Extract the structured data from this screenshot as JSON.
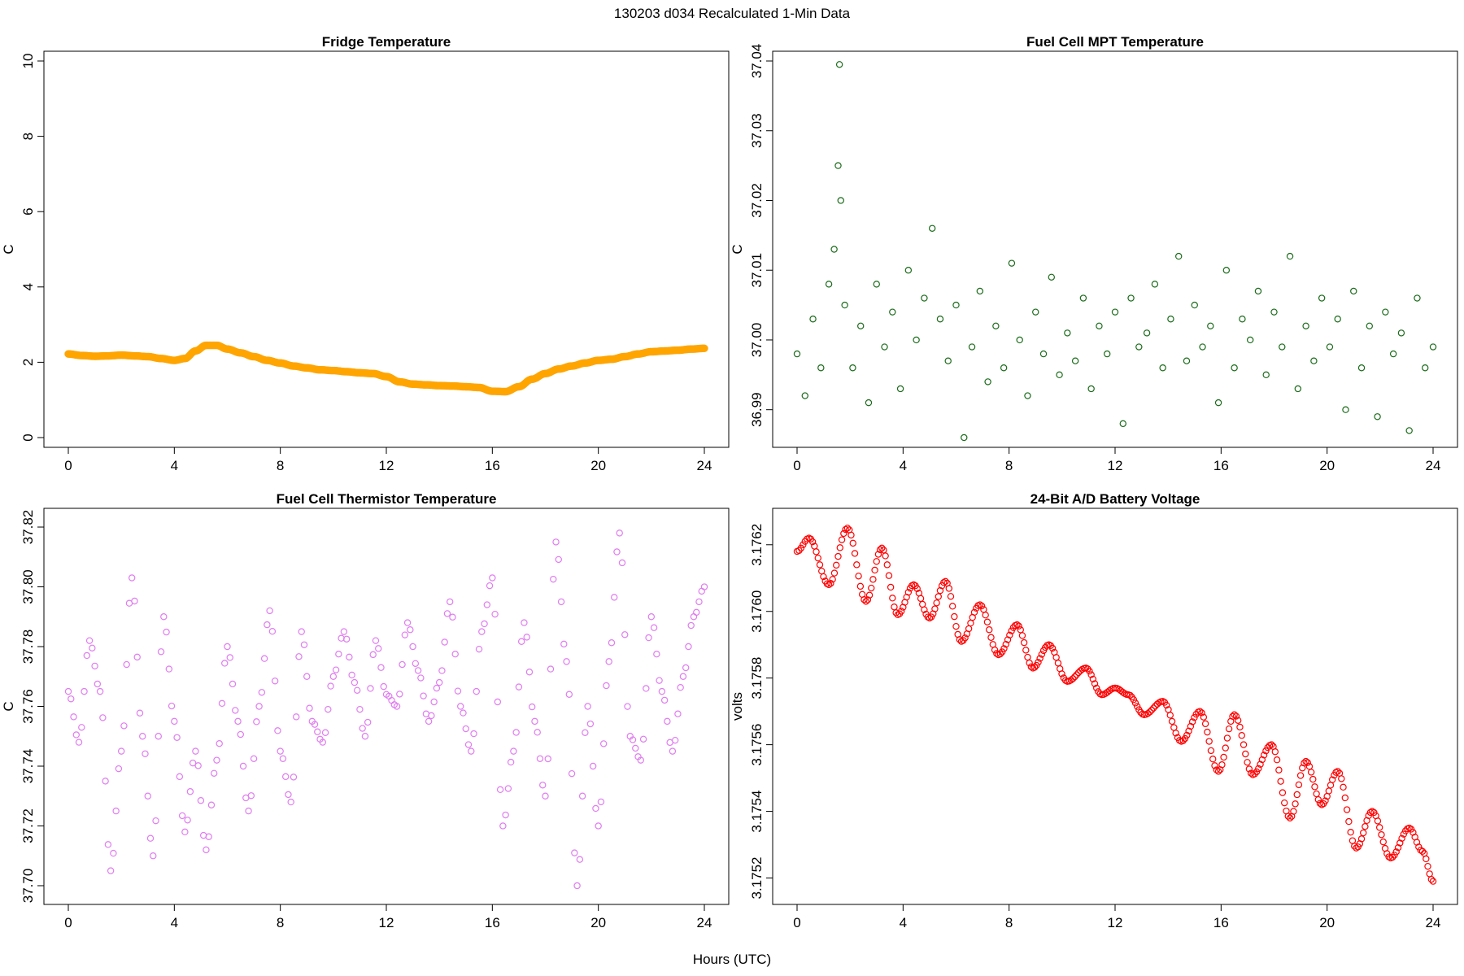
{
  "figure": {
    "title": "130203   d034   Recalculated 1-Min Data",
    "xlabel": "Hours (UTC)"
  },
  "chart_data": [
    {
      "type": "line",
      "title": "Fridge Temperature",
      "xlabel": "",
      "ylabel": "C",
      "xlim": [
        0,
        24
      ],
      "ylim": [
        0,
        10
      ],
      "xticks": [
        0,
        4,
        8,
        12,
        16,
        20,
        24
      ],
      "yticks": [
        0,
        2,
        4,
        6,
        8,
        10
      ],
      "ytick_labels": [
        "0",
        "2",
        "4",
        "6",
        "8",
        "10"
      ],
      "color": "#FFA500",
      "marker": "circle",
      "series": [
        {
          "x": [
            0,
            0.5,
            1,
            1.5,
            2,
            2.5,
            3,
            3.5,
            4,
            4.4,
            4.8,
            5.2,
            5.6,
            6,
            6.5,
            7,
            7.5,
            8,
            8.5,
            9,
            9.5,
            10,
            10.5,
            11,
            11.5,
            12,
            12.5,
            13,
            13.5,
            14,
            14.5,
            15,
            15.5,
            16,
            16.5,
            17,
            17.5,
            18,
            18.5,
            19,
            19.5,
            20,
            20.5,
            21,
            21.5,
            22,
            22.5,
            23,
            23.5,
            24
          ],
          "y": [
            2.22,
            2.18,
            2.16,
            2.17,
            2.19,
            2.17,
            2.15,
            2.1,
            2.05,
            2.1,
            2.3,
            2.45,
            2.45,
            2.35,
            2.25,
            2.15,
            2.05,
            1.98,
            1.9,
            1.85,
            1.8,
            1.78,
            1.75,
            1.72,
            1.7,
            1.62,
            1.48,
            1.42,
            1.4,
            1.38,
            1.37,
            1.35,
            1.33,
            1.23,
            1.22,
            1.35,
            1.55,
            1.7,
            1.82,
            1.9,
            1.98,
            2.05,
            2.08,
            2.15,
            2.22,
            2.28,
            2.3,
            2.32,
            2.35,
            2.37
          ]
        }
      ]
    },
    {
      "type": "scatter",
      "title": "Fuel Cell MPT Temperature",
      "xlabel": "",
      "ylabel": "C",
      "xlim": [
        0,
        24
      ],
      "ylim": [
        36.986,
        37.04
      ],
      "xticks": [
        0,
        4,
        8,
        12,
        16,
        20,
        24
      ],
      "yticks": [
        36.99,
        37.0,
        37.01,
        37.02,
        37.03,
        37.04
      ],
      "ytick_labels": [
        "36.99",
        "37.00",
        "37.01",
        "37.02",
        "37.03",
        "37.04"
      ],
      "color": "#1A6B1A",
      "marker": "open-circle",
      "series": [
        {
          "x": [
            0.0,
            0.3,
            0.6,
            0.9,
            1.2,
            1.4,
            1.55,
            1.6,
            1.65,
            1.8,
            2.1,
            2.4,
            2.7,
            3.0,
            3.3,
            3.6,
            3.9,
            4.2,
            4.5,
            4.8,
            5.1,
            5.4,
            5.7,
            6.0,
            6.3,
            6.6,
            6.9,
            7.2,
            7.5,
            7.8,
            8.1,
            8.4,
            8.7,
            9.0,
            9.3,
            9.6,
            9.9,
            10.2,
            10.5,
            10.8,
            11.1,
            11.4,
            11.7,
            12.0,
            12.3,
            12.6,
            12.9,
            13.2,
            13.5,
            13.8,
            14.1,
            14.4,
            14.7,
            15.0,
            15.3,
            15.6,
            15.9,
            16.2,
            16.5,
            16.8,
            17.1,
            17.4,
            17.7,
            18.0,
            18.3,
            18.6,
            18.9,
            19.2,
            19.5,
            19.8,
            20.1,
            20.4,
            20.7,
            21.0,
            21.3,
            21.6,
            21.9,
            22.2,
            22.5,
            22.8,
            23.1,
            23.4,
            23.7,
            24.0
          ],
          "y": [
            36.998,
            36.992,
            37.003,
            36.996,
            37.008,
            37.013,
            37.025,
            37.0395,
            37.02,
            37.005,
            36.996,
            37.002,
            36.991,
            37.008,
            36.999,
            37.004,
            36.993,
            37.01,
            37.0,
            37.006,
            37.016,
            37.003,
            36.997,
            37.005,
            36.986,
            36.999,
            37.007,
            36.994,
            37.002,
            36.996,
            37.011,
            37.0,
            36.992,
            37.004,
            36.998,
            37.009,
            36.995,
            37.001,
            36.997,
            37.006,
            36.993,
            37.002,
            36.998,
            37.004,
            36.988,
            37.006,
            36.999,
            37.001,
            37.008,
            36.996,
            37.003,
            37.012,
            36.997,
            37.005,
            36.999,
            37.002,
            36.991,
            37.01,
            36.996,
            37.003,
            37.0,
            37.007,
            36.995,
            37.004,
            36.999,
            37.012,
            36.993,
            37.002,
            36.997,
            37.006,
            36.999,
            37.003,
            36.99,
            37.007,
            36.996,
            37.002,
            36.989,
            37.004,
            36.998,
            37.001,
            36.987,
            37.006,
            36.996,
            36.999
          ]
        }
      ]
    },
    {
      "type": "scatter",
      "title": "Fuel Cell Thermistor Temperature",
      "xlabel": "",
      "ylabel": "C",
      "xlim": [
        0,
        24
      ],
      "ylim": [
        37.697,
        37.823
      ],
      "xticks": [
        0,
        4,
        8,
        12,
        16,
        20,
        24
      ],
      "yticks": [
        37.7,
        37.72,
        37.74,
        37.76,
        37.78,
        37.8,
        37.82
      ],
      "ytick_labels": [
        "37.70",
        "37.72",
        "37.74",
        "37.76",
        "37.78",
        "37.80",
        "37.82"
      ],
      "color": "#E07CF0",
      "marker": "open-circle",
      "series": [
        {
          "x": [
            0.0,
            0.4,
            0.8,
            1.2,
            1.6,
            2.0,
            2.4,
            2.8,
            3.2,
            3.6,
            4.0,
            4.4,
            4.8,
            5.2,
            5.6,
            6.0,
            6.4,
            6.8,
            7.2,
            7.6,
            8.0,
            8.4,
            8.8,
            9.2,
            9.6,
            10.0,
            10.4,
            10.8,
            11.2,
            11.6,
            12.0,
            12.4,
            12.8,
            13.2,
            13.6,
            14.0,
            14.4,
            14.8,
            15.2,
            15.6,
            16.0,
            16.4,
            16.8,
            17.2,
            17.6,
            18.0,
            18.4,
            18.8,
            19.2,
            19.6,
            20.0,
            20.4,
            20.8,
            21.2,
            21.6,
            22.0,
            22.4,
            22.8,
            23.2,
            23.6,
            24.0
          ],
          "y": [
            37.765,
            37.748,
            37.782,
            37.765,
            37.705,
            37.745,
            37.803,
            37.75,
            37.71,
            37.79,
            37.755,
            37.718,
            37.745,
            37.712,
            37.742,
            37.78,
            37.755,
            37.725,
            37.76,
            37.792,
            37.745,
            37.728,
            37.785,
            37.755,
            37.748,
            37.77,
            37.785,
            37.768,
            37.75,
            37.782,
            37.764,
            37.76,
            37.788,
            37.772,
            37.755,
            37.768,
            37.795,
            37.76,
            37.745,
            37.785,
            37.803,
            37.72,
            37.745,
            37.788,
            37.755,
            37.73,
            37.815,
            37.775,
            37.7,
            37.76,
            37.72,
            37.775,
            37.818,
            37.75,
            37.742,
            37.79,
            37.765,
            37.745,
            37.77,
            37.79,
            37.8
          ]
        }
      ]
    },
    {
      "type": "line",
      "title": "24-Bit A/D Battery Voltage",
      "xlabel": "",
      "ylabel": "volts",
      "xlim": [
        0,
        24
      ],
      "ylim": [
        3.17515,
        3.17628
      ],
      "xticks": [
        0,
        4,
        8,
        12,
        16,
        20,
        24
      ],
      "yticks": [
        3.1752,
        3.1754,
        3.1756,
        3.1758,
        3.176,
        3.1762
      ],
      "ytick_labels": [
        "3.1752",
        "3.1754",
        "3.1756",
        "3.1758",
        "3.1760",
        "3.1762"
      ],
      "color": "#FF0000",
      "marker": "open-circle",
      "series": [
        {
          "x": [
            0.0,
            0.45,
            1.2,
            1.9,
            2.6,
            3.2,
            3.8,
            4.4,
            5.0,
            5.6,
            6.2,
            6.9,
            7.6,
            8.3,
            8.9,
            9.5,
            10.2,
            10.9,
            11.5,
            12.0,
            12.5,
            13.1,
            13.8,
            14.5,
            15.2,
            15.9,
            16.5,
            17.2,
            17.9,
            18.6,
            19.2,
            19.8,
            20.4,
            21.1,
            21.7,
            22.4,
            23.1,
            23.6,
            24.0
          ],
          "y": [
            3.17618,
            3.17622,
            3.17608,
            3.17625,
            3.17603,
            3.17619,
            3.17599,
            3.17608,
            3.17598,
            3.17609,
            3.17591,
            3.17602,
            3.17587,
            3.17596,
            3.17583,
            3.1759,
            3.17579,
            3.17583,
            3.17575,
            3.17577,
            3.17575,
            3.17569,
            3.17573,
            3.17561,
            3.1757,
            3.17552,
            3.17569,
            3.17551,
            3.1756,
            3.17538,
            3.17555,
            3.17542,
            3.17552,
            3.17529,
            3.1754,
            3.17526,
            3.17535,
            3.17528,
            3.17519
          ]
        }
      ]
    }
  ]
}
